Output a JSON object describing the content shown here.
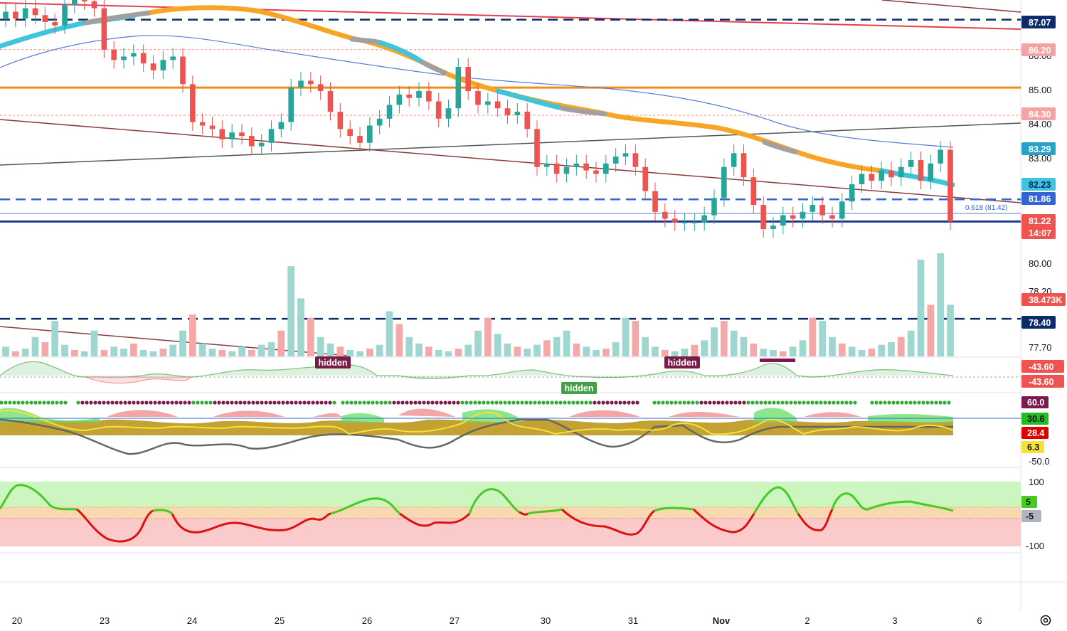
{
  "chart_data": {
    "type": "candlestick",
    "x_tick_labels": [
      "20",
      "23",
      "24",
      "25",
      "26",
      "27",
      "30",
      "31",
      "Nov",
      "2",
      "3",
      "6"
    ],
    "y_tick_labels": [
      "86.00",
      "85.00",
      "84.00",
      "83.00",
      "80.00",
      "78.20",
      "77.70"
    ],
    "y_range": [
      77.5,
      88.0
    ],
    "last_price": 81.22,
    "countdown": "14:07",
    "price_tags": [
      {
        "value": "87.07",
        "color": "#0d2a6b",
        "text_color": "#ffffff"
      },
      {
        "value": "86.20",
        "color": "#f4a3a3",
        "text_color": "#ffffff"
      },
      {
        "value": "84.30",
        "color": "#f4a3a3",
        "text_color": "#ffffff"
      },
      {
        "value": "83.29",
        "color": "#26a3c9",
        "text_color": "#ffffff"
      },
      {
        "value": "82.23",
        "color": "#3ec4dd",
        "text_color": "#0d2a6b"
      },
      {
        "value": "81.86",
        "color": "#3464d4",
        "text_color": "#ffffff"
      },
      {
        "value": "81.22",
        "color": "#ef5350",
        "text_color": "#ffffff"
      },
      {
        "value": "78.40",
        "color": "#0d2a6b",
        "text_color": "#ffffff"
      },
      {
        "value": "38.473K",
        "color": "#ef5350",
        "text_color": "#ffffff"
      }
    ],
    "fib_label": "0.618 (81.42)",
    "horizontal_levels": [
      {
        "value": 87.07,
        "color": "#0d2a6b",
        "style": "dashed"
      },
      {
        "value": 86.2,
        "color": "#f28b82",
        "style": "dotted"
      },
      {
        "value": 85.1,
        "color": "#f08c1a",
        "style": "solid"
      },
      {
        "value": 84.3,
        "color": "#f28b82",
        "style": "dotted"
      },
      {
        "value": 81.86,
        "color": "#3464d4",
        "style": "dashed"
      },
      {
        "value": 81.22,
        "color": "#1f3a93",
        "style": "solid"
      },
      {
        "value": 78.4,
        "color": "#0d2a6b",
        "style": "dashed"
      }
    ],
    "candles_close": [
      87.3,
      87.1,
      87.4,
      87.2,
      87.0,
      86.9,
      87.5,
      87.9,
      87.6,
      87.4,
      86.2,
      85.9,
      86.0,
      86.1,
      85.8,
      85.6,
      85.9,
      86.0,
      85.2,
      84.1,
      84.0,
      83.9,
      83.6,
      83.8,
      83.7,
      83.4,
      83.5,
      83.9,
      84.1,
      85.1,
      85.3,
      85.2,
      85.0,
      84.4,
      83.9,
      83.7,
      83.5,
      84.0,
      84.2,
      84.6,
      84.9,
      84.8,
      85.0,
      84.7,
      84.2,
      84.5,
      85.7,
      85.0,
      84.6,
      84.7,
      84.5,
      84.3,
      84.4,
      83.9,
      82.8,
      82.9,
      82.6,
      82.8,
      82.9,
      82.7,
      82.6,
      82.9,
      83.1,
      83.2,
      82.8,
      82.1,
      81.5,
      81.3,
      81.2,
      81.2,
      81.2,
      81.4,
      81.9,
      82.8,
      83.2,
      82.5,
      81.7,
      81.0,
      81.1,
      81.4,
      81.3,
      81.5,
      81.7,
      81.4,
      81.3,
      81.8,
      82.3,
      82.6,
      82.4,
      82.7,
      82.5,
      82.8,
      83.0,
      82.4,
      82.9,
      83.3,
      81.22
    ],
    "volume": [
      15,
      8,
      12,
      30,
      22,
      55,
      18,
      10,
      8,
      40,
      10,
      15,
      12,
      20,
      10,
      8,
      12,
      18,
      40,
      65,
      20,
      12,
      10,
      8,
      15,
      10,
      18,
      22,
      40,
      140,
      90,
      60,
      30,
      20,
      15,
      10,
      8,
      12,
      18,
      70,
      50,
      30,
      20,
      15,
      10,
      8,
      12,
      18,
      40,
      60,
      35,
      20,
      15,
      12,
      18,
      25,
      30,
      40,
      20,
      15,
      10,
      12,
      22,
      60,
      55,
      30,
      15,
      10,
      8,
      12,
      18,
      25,
      45,
      55,
      40,
      30,
      20,
      12,
      10,
      8,
      15,
      25,
      60,
      55,
      30,
      20,
      15,
      10,
      12,
      18,
      22,
      30,
      40,
      150,
      80,
      160,
      80
    ],
    "indicator_levels": {
      "divergence": [
        "-43.60",
        "-43.60"
      ],
      "osc2": [
        "60.0",
        "30.6",
        "28.4",
        "6.3",
        "-50.0"
      ],
      "osc3": [
        "100",
        "5",
        "-5",
        "-100"
      ]
    },
    "annotations": [
      "hidden",
      "hidden",
      "hidden"
    ],
    "colors": {
      "up": "#26a69a",
      "down": "#ef5350",
      "ma_orange": "#f6a623",
      "ma_cyan": "#3ec4dd",
      "ma_grey": "#a0a0a0",
      "ma_blue": "#5b7bd5",
      "trend_red": "#e53e50",
      "trend_brown": "#8d3a3a",
      "trend_black": "#444444"
    }
  }
}
